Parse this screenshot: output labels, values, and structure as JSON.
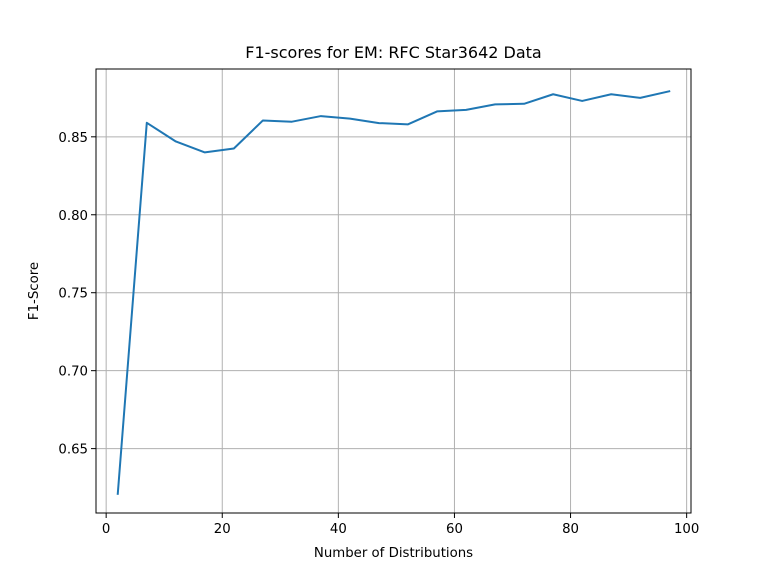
{
  "chart_data": {
    "type": "line",
    "title": "F1-scores for EM: RFC Star3642 Data",
    "xlabel": "Number of Distributions",
    "ylabel": "F1-Score",
    "xlim": [
      -1.75,
      100.75
    ],
    "ylim": [
      0.6087,
      0.8935
    ],
    "x_ticks": [
      0,
      20,
      40,
      60,
      80,
      100
    ],
    "y_ticks": [
      0.65,
      0.7,
      0.75,
      0.8,
      0.85
    ],
    "x_tick_labels": [
      "0",
      "20",
      "40",
      "60",
      "80",
      "100"
    ],
    "y_tick_labels": [
      "0.65",
      "0.70",
      "0.75",
      "0.80",
      "0.85"
    ],
    "grid": true,
    "legend": "none",
    "series": [
      {
        "color": "#1f77b4",
        "x": [
          2,
          7,
          12,
          17,
          22,
          27,
          32,
          37,
          42,
          47,
          52,
          57,
          62,
          67,
          72,
          77,
          82,
          87,
          92,
          97
        ],
        "y": [
          0.621,
          0.859,
          0.847,
          0.84,
          0.8425,
          0.8605,
          0.8597,
          0.8633,
          0.8617,
          0.8588,
          0.858,
          0.8663,
          0.8673,
          0.8708,
          0.8712,
          0.8773,
          0.873,
          0.8773,
          0.875,
          0.8792
        ]
      }
    ]
  }
}
